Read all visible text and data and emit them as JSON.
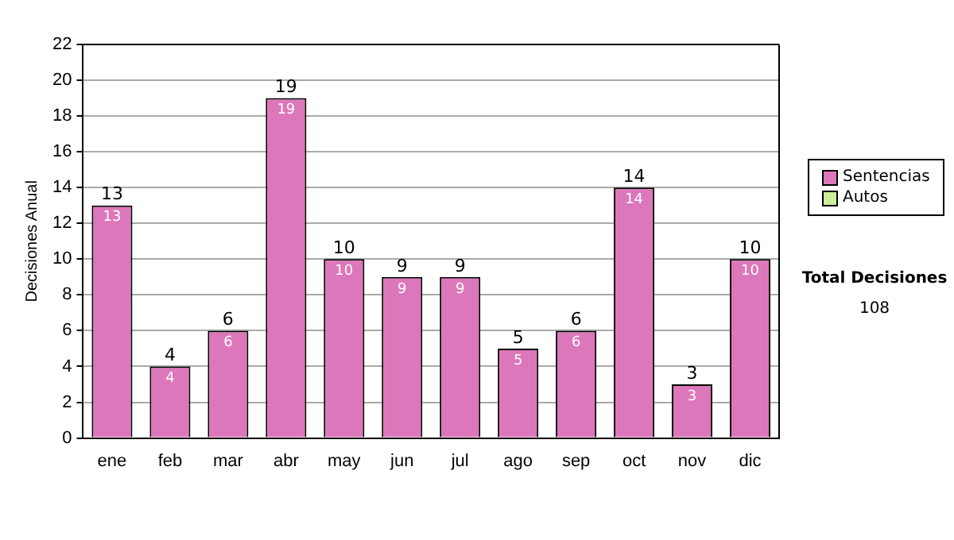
{
  "chart_data": {
    "type": "bar",
    "ylabel": "Decisiones Anual",
    "categories": [
      "ene",
      "feb",
      "mar",
      "abr",
      "may",
      "jun",
      "jul",
      "ago",
      "sep",
      "oct",
      "nov",
      "dic"
    ],
    "series": [
      {
        "name": "Sentencias",
        "color": "#dd77bb",
        "values": [
          13,
          4,
          6,
          19,
          10,
          9,
          9,
          5,
          6,
          14,
          3,
          10
        ]
      },
      {
        "name": "Autos",
        "color": "#ccee99",
        "values": [
          null,
          null,
          null,
          null,
          null,
          null,
          null,
          null,
          null,
          null,
          null,
          null
        ]
      }
    ],
    "stacked": true,
    "totals": [
      "13",
      "4",
      "6",
      "19",
      "10",
      "9",
      "9",
      "5",
      "6",
      "14",
      "3",
      "10"
    ],
    "data_labels": true,
    "ylim": [
      0,
      22
    ],
    "yticks": [
      0,
      2,
      4,
      6,
      8,
      10,
      12,
      14,
      16,
      18,
      20,
      22
    ],
    "grid": "y",
    "legend": "right",
    "annotations": [
      "Total Decisiones",
      "108"
    ]
  }
}
